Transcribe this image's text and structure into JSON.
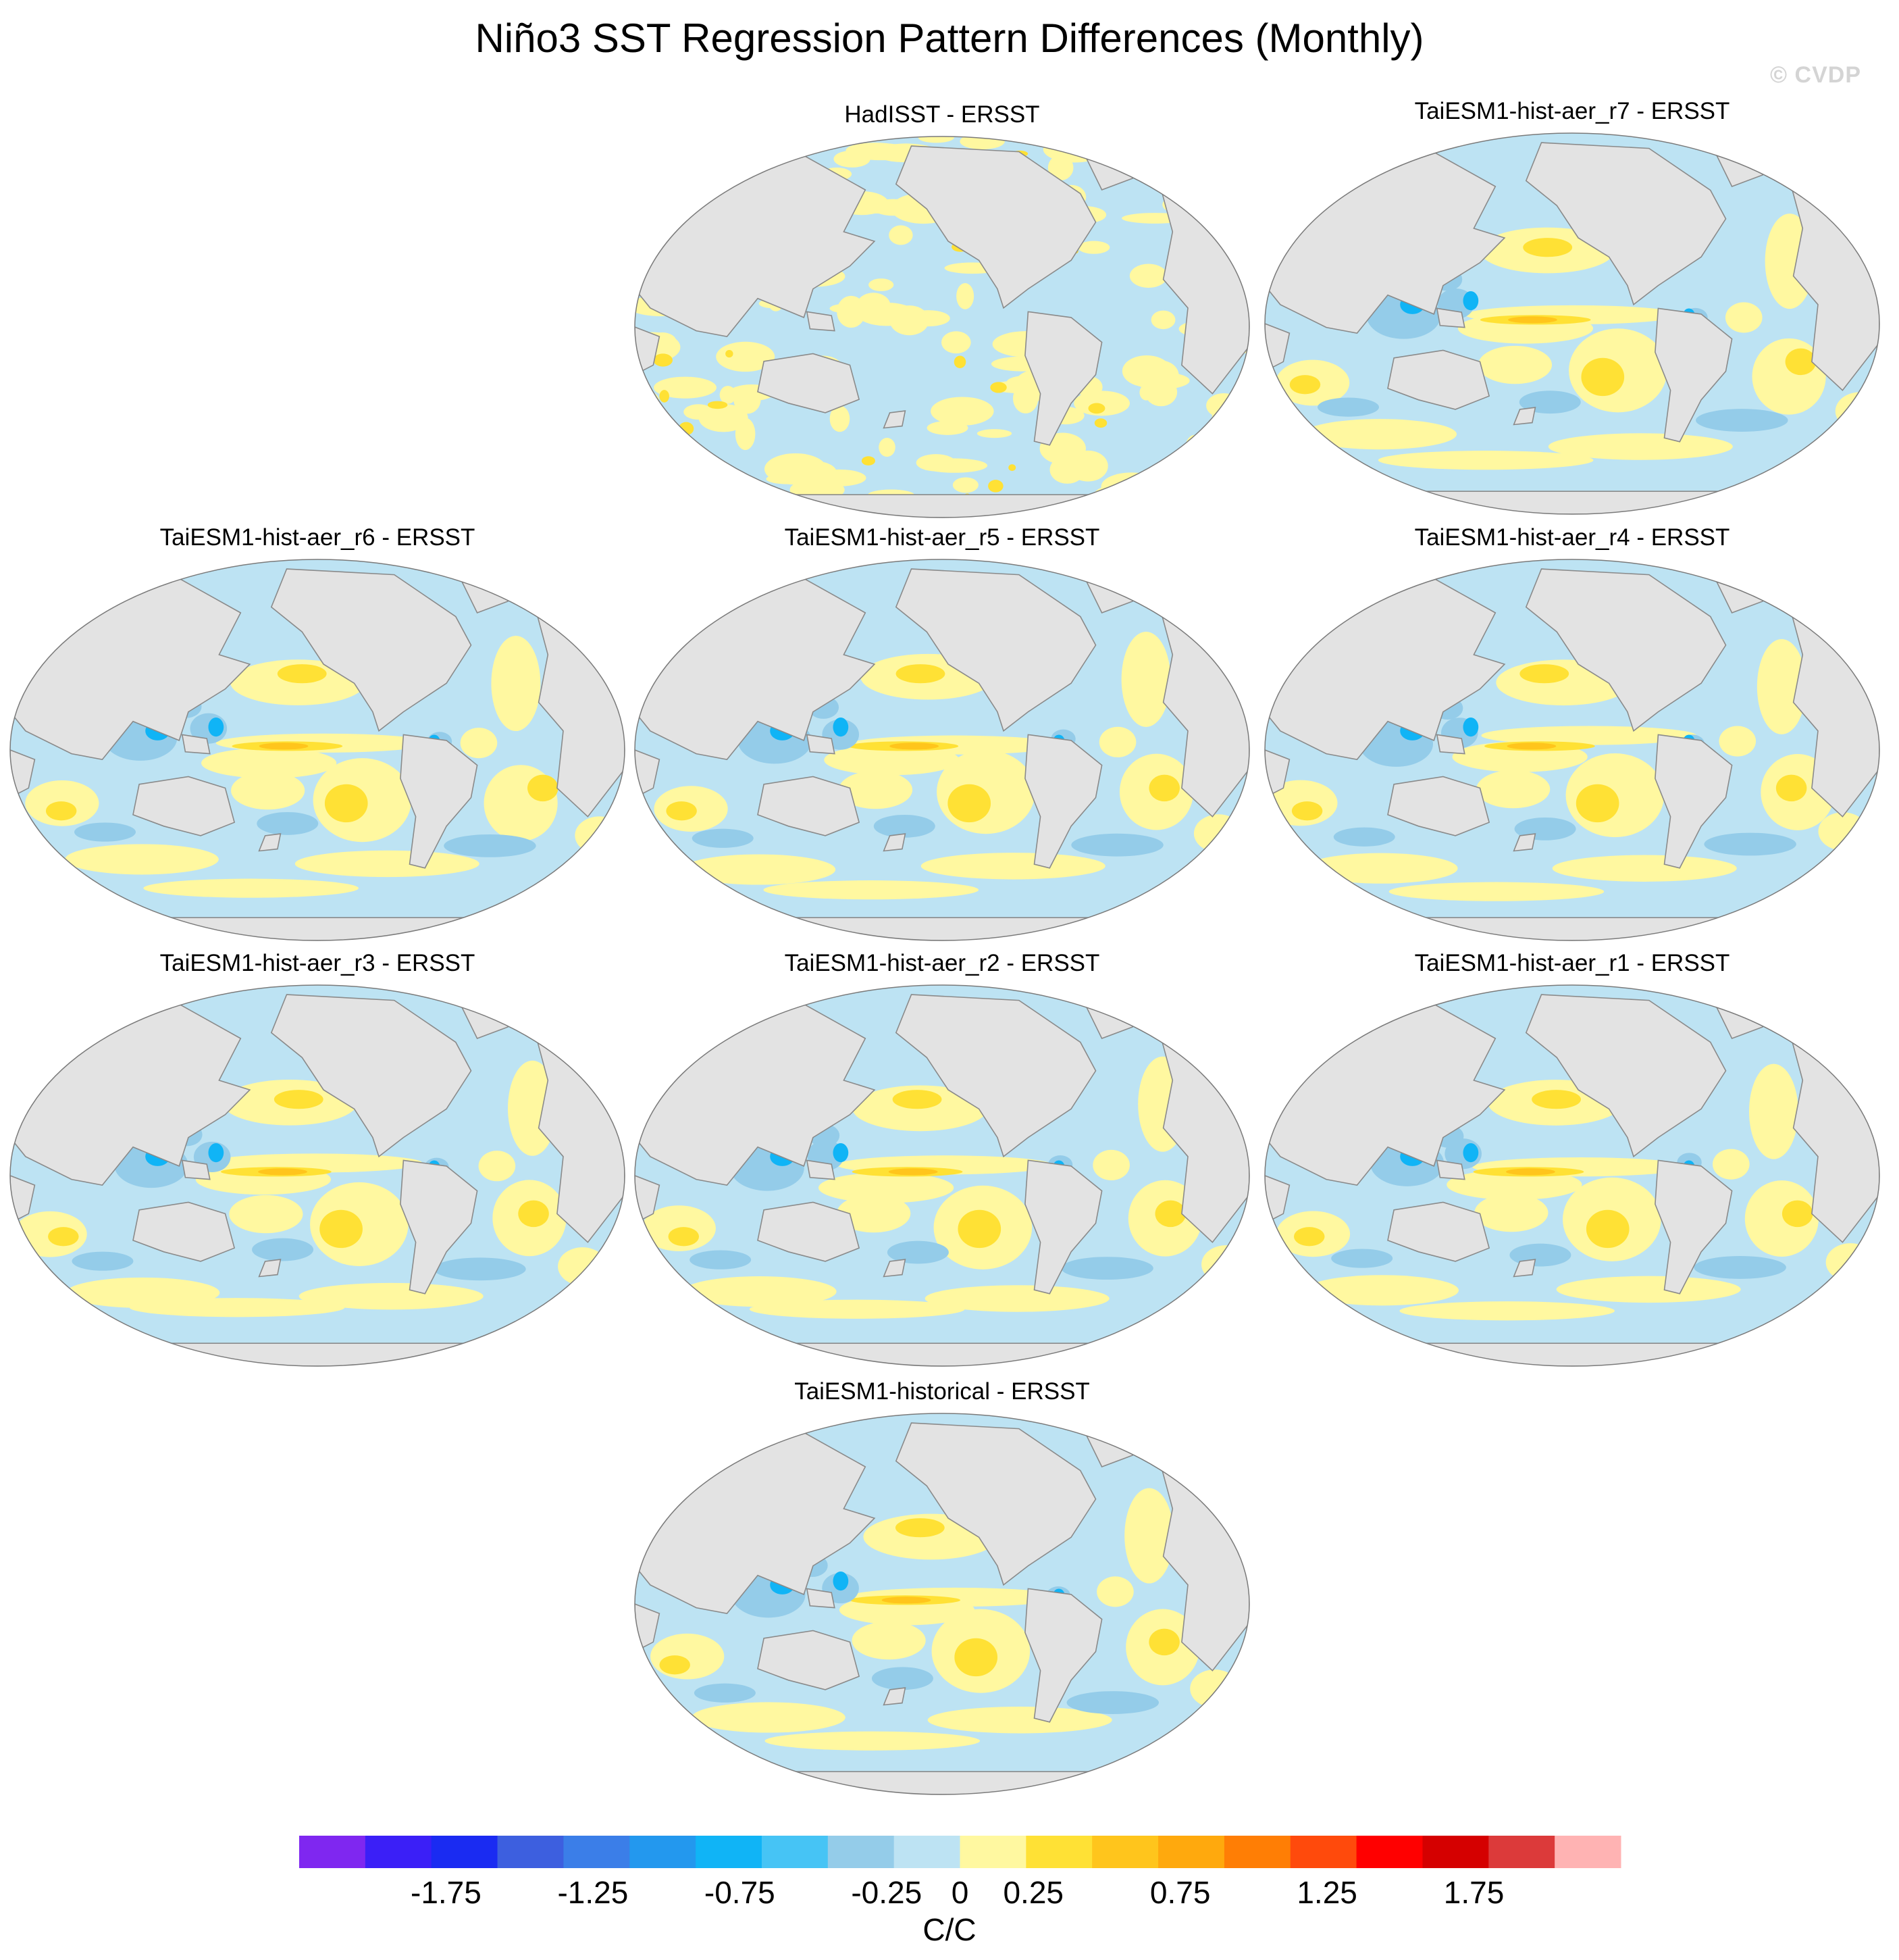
{
  "title": "Niño3 SST Regression Pattern Differences (Monthly)",
  "watermark": "© CVDP",
  "panels": [
    {
      "id": "hadisst",
      "title": "HadISST - ERSST",
      "pattern": "noise"
    },
    {
      "id": "r7",
      "title": "TaiESM1-hist-aer_r7 - ERSST",
      "pattern": "model"
    },
    {
      "id": "r6",
      "title": "TaiESM1-hist-aer_r6 - ERSST",
      "pattern": "model"
    },
    {
      "id": "r5",
      "title": "TaiESM1-hist-aer_r5 - ERSST",
      "pattern": "model"
    },
    {
      "id": "r4",
      "title": "TaiESM1-hist-aer_r4 - ERSST",
      "pattern": "model"
    },
    {
      "id": "r3",
      "title": "TaiESM1-hist-aer_r3 - ERSST",
      "pattern": "model"
    },
    {
      "id": "r2",
      "title": "TaiESM1-hist-aer_r2 - ERSST",
      "pattern": "model"
    },
    {
      "id": "r1",
      "title": "TaiESM1-hist-aer_r1 - ERSST",
      "pattern": "model"
    },
    {
      "id": "historical",
      "title": "TaiESM1-historical - ERSST",
      "pattern": "model"
    }
  ],
  "colorbar": {
    "unit": "C/C",
    "colors": [
      "#7f27f0",
      "#3b1ff7",
      "#1a2bf2",
      "#3d5fdf",
      "#3b7ee8",
      "#2398ee",
      "#10b4f6",
      "#46c4f5",
      "#94cce9",
      "#bde3f3",
      "#fff8a0",
      "#ffe135",
      "#ffc51c",
      "#ffa90d",
      "#ff7e05",
      "#ff4a0c",
      "#ff0000",
      "#d50000",
      "#dc3a3a",
      "#ffb3b3"
    ],
    "tick_labels": [
      "-1.75",
      "-1.25",
      "-0.75",
      "-0.25",
      "0",
      "0.25",
      "0.75",
      "1.25",
      "1.75"
    ],
    "tick_values": [
      -1.75,
      -1.25,
      -0.75,
      -0.25,
      0,
      0.25,
      0.75,
      1.25,
      1.75
    ],
    "range": [
      -2.25,
      2.25
    ]
  },
  "palette": {
    "land": "#e3e3e3",
    "coast": "#8a8a8a",
    "ocean_neg": "#bde3f3",
    "ocean_pos": "#fff8a0"
  }
}
